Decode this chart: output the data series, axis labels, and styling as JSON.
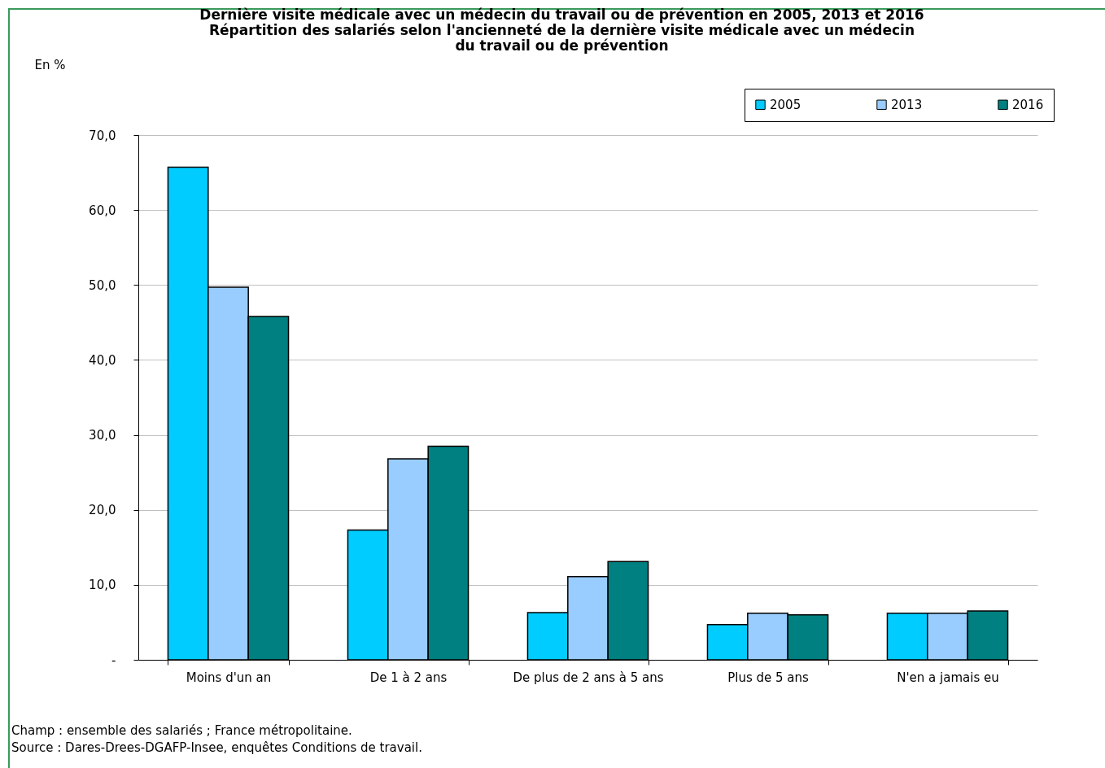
{
  "chart_data": {
    "type": "bar",
    "title": "Dernière visite médicale avec un médecin du travail ou de prévention en 2005, 2013 et 2016",
    "subtitle": "Répartition des salariés selon l'ancienneté de la dernière visite médicale avec un médecin du travail ou de prévention",
    "ylabel": "En %",
    "categories": [
      "Moins d'un an",
      "De 1 à 2 ans",
      "De plus de 2 ans à 5 ans",
      "Plus de 5 ans",
      "N'en a jamais eu"
    ],
    "series": [
      {
        "name": "2005",
        "color": "#00ccff",
        "values": [
          65.7,
          17.3,
          6.3,
          4.7,
          6.2
        ]
      },
      {
        "name": "2013",
        "color": "#99ccff",
        "values": [
          49.7,
          26.8,
          11.1,
          6.2,
          6.2
        ]
      },
      {
        "name": "2016",
        "color": "#008080",
        "values": [
          45.8,
          28.5,
          13.1,
          6.0,
          6.5
        ]
      }
    ],
    "ylim": [
      0,
      70
    ],
    "yticks": [
      {
        "value": 0,
        "label": "-"
      },
      {
        "value": 10,
        "label": "10,0"
      },
      {
        "value": 20,
        "label": "20,0"
      },
      {
        "value": 30,
        "label": "30,0"
      },
      {
        "value": 40,
        "label": "40,0"
      },
      {
        "value": 50,
        "label": "50,0"
      },
      {
        "value": 60,
        "label": "60,0"
      },
      {
        "value": 70,
        "label": "70,0"
      }
    ],
    "grid": "y",
    "legend": "top right",
    "annotations": [
      "Champ : ensemble des salariés ; France métropolitaine.",
      "Source : Dares-Drees-DGAFP-Insee, enquêtes Conditions de travail."
    ]
  }
}
